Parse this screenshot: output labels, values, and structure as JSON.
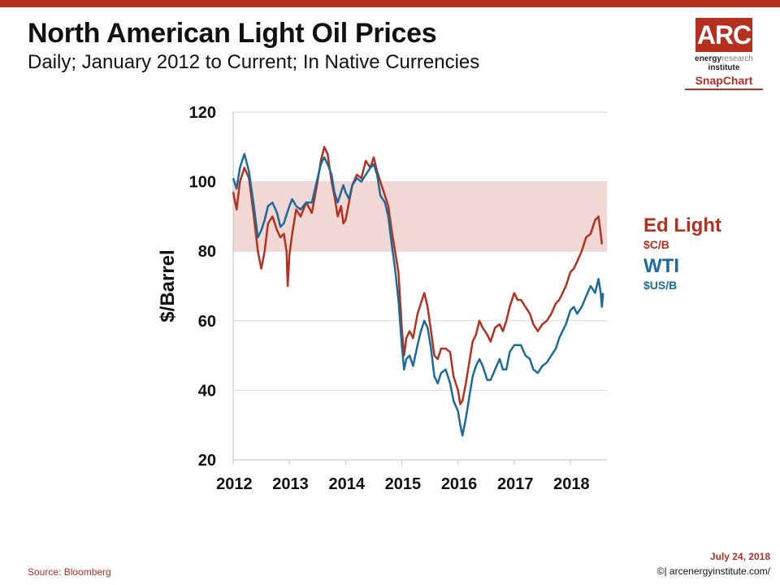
{
  "header": {
    "title": "North American Light Oil Prices",
    "subtitle": "Daily; January 2012 to Current; In Native Currencies"
  },
  "logo": {
    "mark": "ARC",
    "line1_a": "energy",
    "line1_b": "research",
    "line2": "institute",
    "snapchart": "SnapChart"
  },
  "footer": {
    "source": "Source: Bloomberg",
    "date": "July 24, 2018",
    "site": "©| arcenergyinstitute.com/"
  },
  "colors": {
    "accent": "#b5301f",
    "edlight": "#b5301f",
    "wti": "#1a6a9a",
    "band": "#f2d8d4"
  },
  "chart_data": {
    "type": "line",
    "ylabel": "$/Barrel",
    "ylim": [
      20,
      120
    ],
    "yticks": [
      "20",
      "40",
      "60",
      "80",
      "100",
      "120"
    ],
    "xlim": [
      2012.0,
      2018.65
    ],
    "xticks": [
      {
        "label": "2012",
        "x": 2012.0
      },
      {
        "label": "2013",
        "x": 2013.0
      },
      {
        "label": "2014",
        "x": 2014.0
      },
      {
        "label": "2015",
        "x": 2015.0
      },
      {
        "label": "2016",
        "x": 2016.0
      },
      {
        "label": "2017",
        "x": 2017.0
      },
      {
        "label": "2018",
        "x": 2018.0
      }
    ],
    "grid": true,
    "band": {
      "from": 80,
      "to": 100
    },
    "legend_placement": "right",
    "series": [
      {
        "name": "Ed Light",
        "unit": "$C/B",
        "color": "#b5301f",
        "points": [
          [
            2012.0,
            97
          ],
          [
            2012.06,
            92
          ],
          [
            2012.12,
            100
          ],
          [
            2012.2,
            104
          ],
          [
            2012.28,
            101
          ],
          [
            2012.36,
            91
          ],
          [
            2012.44,
            80
          ],
          [
            2012.5,
            75
          ],
          [
            2012.56,
            80
          ],
          [
            2012.62,
            88
          ],
          [
            2012.7,
            90
          ],
          [
            2012.78,
            86
          ],
          [
            2012.84,
            84
          ],
          [
            2012.9,
            85
          ],
          [
            2012.95,
            80
          ],
          [
            2012.97,
            70
          ],
          [
            2013.0,
            79
          ],
          [
            2013.05,
            85
          ],
          [
            2013.12,
            92
          ],
          [
            2013.2,
            90
          ],
          [
            2013.3,
            94
          ],
          [
            2013.4,
            91
          ],
          [
            2013.5,
            100
          ],
          [
            2013.56,
            106
          ],
          [
            2013.62,
            110
          ],
          [
            2013.68,
            108
          ],
          [
            2013.75,
            100
          ],
          [
            2013.8,
            96
          ],
          [
            2013.86,
            90
          ],
          [
            2013.92,
            93
          ],
          [
            2013.96,
            88
          ],
          [
            2014.0,
            89
          ],
          [
            2014.06,
            94
          ],
          [
            2014.12,
            99
          ],
          [
            2014.2,
            102
          ],
          [
            2014.28,
            101
          ],
          [
            2014.36,
            106
          ],
          [
            2014.44,
            104
          ],
          [
            2014.5,
            107
          ],
          [
            2014.56,
            103
          ],
          [
            2014.62,
            100
          ],
          [
            2014.7,
            96
          ],
          [
            2014.76,
            93
          ],
          [
            2014.82,
            86
          ],
          [
            2014.88,
            80
          ],
          [
            2014.94,
            74
          ],
          [
            2015.0,
            58
          ],
          [
            2015.04,
            50
          ],
          [
            2015.08,
            55
          ],
          [
            2015.14,
            57
          ],
          [
            2015.2,
            55
          ],
          [
            2015.28,
            62
          ],
          [
            2015.34,
            65
          ],
          [
            2015.4,
            68
          ],
          [
            2015.46,
            64
          ],
          [
            2015.52,
            57
          ],
          [
            2015.58,
            50
          ],
          [
            2015.64,
            49
          ],
          [
            2015.7,
            52
          ],
          [
            2015.78,
            52
          ],
          [
            2015.86,
            51
          ],
          [
            2015.92,
            44
          ],
          [
            2016.0,
            40
          ],
          [
            2016.04,
            36
          ],
          [
            2016.08,
            37
          ],
          [
            2016.14,
            42
          ],
          [
            2016.2,
            48
          ],
          [
            2016.26,
            54
          ],
          [
            2016.32,
            56
          ],
          [
            2016.38,
            60
          ],
          [
            2016.44,
            58
          ],
          [
            2016.52,
            56
          ],
          [
            2016.58,
            54
          ],
          [
            2016.66,
            58
          ],
          [
            2016.74,
            59
          ],
          [
            2016.8,
            57
          ],
          [
            2016.86,
            60
          ],
          [
            2016.92,
            64
          ],
          [
            2017.0,
            68
          ],
          [
            2017.06,
            66
          ],
          [
            2017.12,
            66
          ],
          [
            2017.2,
            64
          ],
          [
            2017.28,
            62
          ],
          [
            2017.34,
            59
          ],
          [
            2017.42,
            57
          ],
          [
            2017.5,
            59
          ],
          [
            2017.58,
            60
          ],
          [
            2017.66,
            62
          ],
          [
            2017.74,
            65
          ],
          [
            2017.8,
            66
          ],
          [
            2017.86,
            68
          ],
          [
            2017.92,
            70
          ],
          [
            2018.0,
            74
          ],
          [
            2018.06,
            75
          ],
          [
            2018.12,
            77
          ],
          [
            2018.2,
            80
          ],
          [
            2018.28,
            84
          ],
          [
            2018.36,
            85
          ],
          [
            2018.44,
            89
          ],
          [
            2018.5,
            90
          ],
          [
            2018.54,
            85
          ],
          [
            2018.56,
            82
          ]
        ]
      },
      {
        "name": "WTI",
        "unit": "$US/B",
        "color": "#1a6a9a",
        "points": [
          [
            2012.0,
            101
          ],
          [
            2012.06,
            98
          ],
          [
            2012.12,
            104
          ],
          [
            2012.2,
            108
          ],
          [
            2012.28,
            103
          ],
          [
            2012.36,
            94
          ],
          [
            2012.44,
            84
          ],
          [
            2012.5,
            86
          ],
          [
            2012.56,
            89
          ],
          [
            2012.62,
            93
          ],
          [
            2012.7,
            94
          ],
          [
            2012.78,
            91
          ],
          [
            2012.84,
            87
          ],
          [
            2012.9,
            88
          ],
          [
            2012.96,
            91
          ],
          [
            2013.0,
            93
          ],
          [
            2013.05,
            95
          ],
          [
            2013.12,
            93
          ],
          [
            2013.2,
            92
          ],
          [
            2013.3,
            94
          ],
          [
            2013.4,
            94
          ],
          [
            2013.5,
            101
          ],
          [
            2013.56,
            105
          ],
          [
            2013.62,
            107
          ],
          [
            2013.68,
            105
          ],
          [
            2013.75,
            102
          ],
          [
            2013.8,
            97
          ],
          [
            2013.86,
            94
          ],
          [
            2013.92,
            97
          ],
          [
            2013.96,
            99
          ],
          [
            2014.0,
            97
          ],
          [
            2014.06,
            95
          ],
          [
            2014.12,
            99
          ],
          [
            2014.2,
            101
          ],
          [
            2014.28,
            100
          ],
          [
            2014.36,
            102
          ],
          [
            2014.44,
            104
          ],
          [
            2014.5,
            105
          ],
          [
            2014.56,
            102
          ],
          [
            2014.62,
            96
          ],
          [
            2014.7,
            94
          ],
          [
            2014.76,
            90
          ],
          [
            2014.82,
            82
          ],
          [
            2014.88,
            75
          ],
          [
            2014.94,
            66
          ],
          [
            2015.0,
            53
          ],
          [
            2015.04,
            46
          ],
          [
            2015.08,
            49
          ],
          [
            2015.14,
            50
          ],
          [
            2015.2,
            47
          ],
          [
            2015.28,
            53
          ],
          [
            2015.34,
            57
          ],
          [
            2015.4,
            60
          ],
          [
            2015.46,
            58
          ],
          [
            2015.52,
            52
          ],
          [
            2015.58,
            44
          ],
          [
            2015.64,
            42
          ],
          [
            2015.7,
            45
          ],
          [
            2015.78,
            46
          ],
          [
            2015.86,
            42
          ],
          [
            2015.92,
            37
          ],
          [
            2016.0,
            34
          ],
          [
            2016.04,
            30
          ],
          [
            2016.08,
            27
          ],
          [
            2016.14,
            32
          ],
          [
            2016.2,
            38
          ],
          [
            2016.26,
            44
          ],
          [
            2016.32,
            47
          ],
          [
            2016.38,
            49
          ],
          [
            2016.44,
            47
          ],
          [
            2016.52,
            43
          ],
          [
            2016.58,
            43
          ],
          [
            2016.66,
            46
          ],
          [
            2016.74,
            49
          ],
          [
            2016.8,
            46
          ],
          [
            2016.86,
            46
          ],
          [
            2016.92,
            51
          ],
          [
            2017.0,
            53
          ],
          [
            2017.06,
            53
          ],
          [
            2017.12,
            53
          ],
          [
            2017.2,
            50
          ],
          [
            2017.28,
            49
          ],
          [
            2017.34,
            46
          ],
          [
            2017.42,
            45
          ],
          [
            2017.5,
            47
          ],
          [
            2017.58,
            48
          ],
          [
            2017.66,
            50
          ],
          [
            2017.74,
            52
          ],
          [
            2017.8,
            55
          ],
          [
            2017.86,
            57
          ],
          [
            2017.92,
            59
          ],
          [
            2018.0,
            63
          ],
          [
            2018.06,
            64
          ],
          [
            2018.12,
            62
          ],
          [
            2018.2,
            64
          ],
          [
            2018.28,
            67
          ],
          [
            2018.36,
            70
          ],
          [
            2018.44,
            68
          ],
          [
            2018.5,
            72
          ],
          [
            2018.54,
            68
          ],
          [
            2018.56,
            64
          ],
          [
            2018.58,
            68
          ]
        ]
      }
    ]
  }
}
